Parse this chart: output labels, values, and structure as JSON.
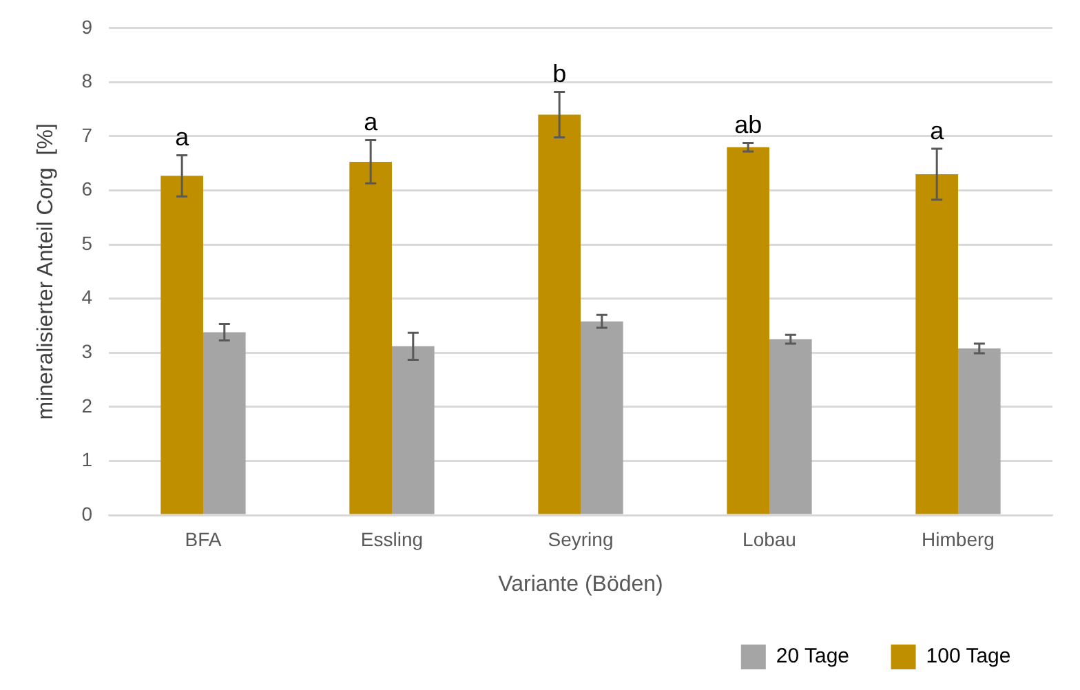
{
  "chart_data": {
    "type": "bar",
    "categories": [
      "BFA",
      "Essling",
      "Seyring",
      "Lobau",
      "Himberg"
    ],
    "series": [
      {
        "name": "100 Tage",
        "color": "#bf8f00",
        "values": [
          6.27,
          6.53,
          7.4,
          6.8,
          6.3
        ],
        "errors": [
          0.38,
          0.4,
          0.42,
          0.08,
          0.47
        ]
      },
      {
        "name": "20 Tage",
        "color": "#a5a5a5",
        "values": [
          3.38,
          3.12,
          3.58,
          3.25,
          3.08
        ],
        "errors": [
          0.15,
          0.25,
          0.12,
          0.08,
          0.09
        ]
      }
    ],
    "xlabel": "Variante (Böden)",
    "ylabel": "mineralisierter Anteil Corg  [%]",
    "ylim": [
      0,
      9
    ],
    "yticks": [
      0,
      1,
      2,
      3,
      4,
      5,
      6,
      7,
      8,
      9
    ],
    "annotations": [
      {
        "text": "a",
        "x": "BFA",
        "y": 6.27
      },
      {
        "text": "a",
        "x": "Essling",
        "y": 6.53
      },
      {
        "text": "b",
        "x": "Seyring",
        "y": 7.4
      },
      {
        "text": "ab",
        "x": "Lobau",
        "y": 6.8
      },
      {
        "text": "a",
        "x": "Himberg",
        "y": 6.3
      }
    ],
    "grid": "y",
    "legend": "bottom right"
  }
}
